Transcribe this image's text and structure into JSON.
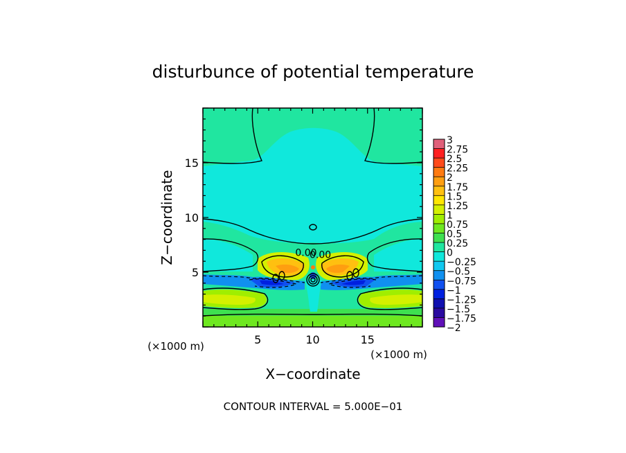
{
  "chart_data": {
    "type": "heatmap",
    "title": "disturbunce of potential temperature",
    "xlabel": "X−coordinate",
    "ylabel": "Z−coordinate",
    "x_unit": "(×1000 m)",
    "z_unit": "(×1000 m)",
    "xlim": [
      0,
      20
    ],
    "ylim": [
      0,
      20
    ],
    "x_ticks": [
      5,
      10,
      15
    ],
    "y_ticks": [
      5,
      10,
      15
    ],
    "contour_interval_label": "CONTOUR INTERVAL = 5.000E−01",
    "contour_labels": [
      {
        "x": 9.4,
        "z": 6.8,
        "text": "0.00"
      },
      {
        "x": 10.7,
        "z": 6.6,
        "text": "0.00"
      }
    ],
    "colorbar": {
      "min": -2,
      "max": 3,
      "step": 0.25,
      "tick_labels": [
        "3",
        "2.75",
        "2.5",
        "2.25",
        "2",
        "1.75",
        "1.5",
        "1.25",
        "1",
        "0.75",
        "0.5",
        "0.25",
        "0",
        "−0.25",
        "−0.5",
        "−0.75",
        "−1",
        "−1.25",
        "−1.5",
        "−1.75",
        "−2"
      ],
      "colors": [
        "#e0607a",
        "#ff2020",
        "#ff4a1a",
        "#ff7a10",
        "#ff9e10",
        "#ffc010",
        "#ffe600",
        "#d4f000",
        "#a0ee00",
        "#6ee820",
        "#3ee050",
        "#20e6a0",
        "#10e8dc",
        "#10c8f0",
        "#1090f0",
        "#1050f0",
        "#0020e0",
        "#1010b0",
        "#2a0aa0",
        "#6010b8"
      ]
    }
  }
}
